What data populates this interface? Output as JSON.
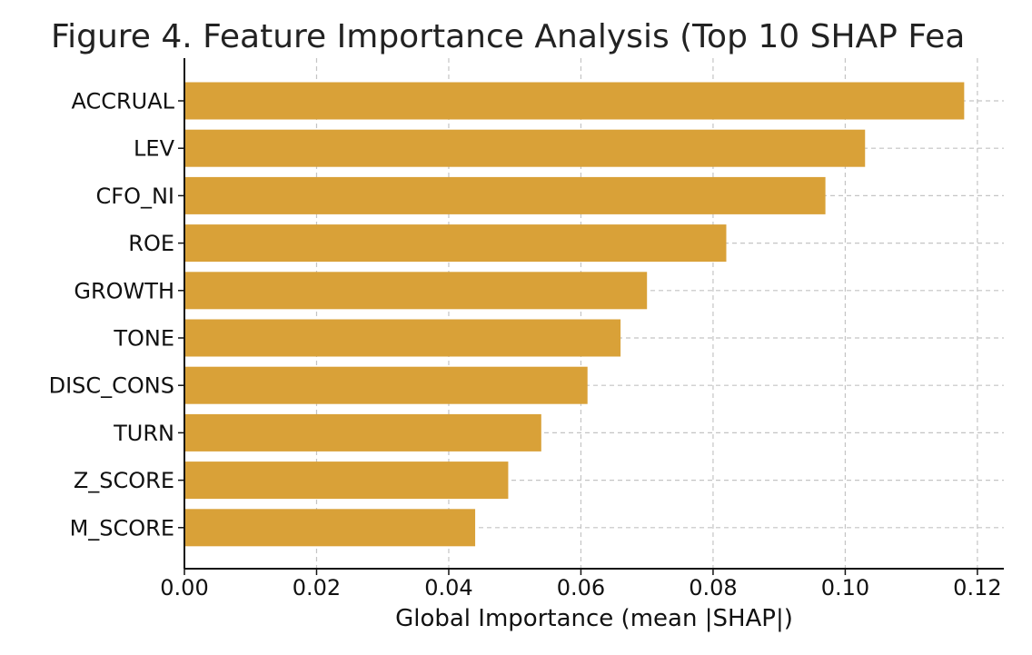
{
  "chart_data": {
    "type": "bar",
    "orientation": "horizontal",
    "title": "Figure 4. Feature Importance Analysis (Top 10 SHAP Fea",
    "xlabel": "Global Importance (mean |SHAP|)",
    "ylabel": "",
    "categories": [
      "ACCRUAL",
      "LEV",
      "CFO_NI",
      "ROE",
      "GROWTH",
      "TONE",
      "DISC_CONS",
      "TURN",
      "Z_SCORE",
      "M_SCORE"
    ],
    "values": [
      0.118,
      0.103,
      0.097,
      0.082,
      0.07,
      0.066,
      0.061,
      0.054,
      0.049,
      0.044
    ],
    "xlim": [
      0,
      0.124
    ],
    "xticks": [
      "0.00",
      "0.02",
      "0.04",
      "0.06",
      "0.08",
      "0.10",
      "0.12"
    ],
    "grid": true,
    "bar_color": "#D9A138"
  }
}
